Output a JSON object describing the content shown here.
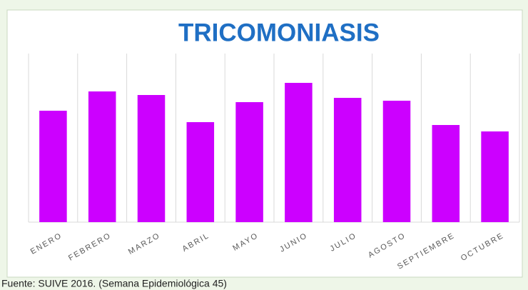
{
  "chart_data": {
    "type": "bar",
    "title": "TRICOMONIASIS",
    "categories": [
      "ENERO",
      "FEBRERO",
      "MARZO",
      "ABRIL",
      "MAYO",
      "JUNIO",
      "JULIO",
      "AGOSTO",
      "SEPTIEMBRE",
      "OCTUBRE"
    ],
    "values": [
      156,
      183,
      178,
      140,
      168,
      195,
      174,
      170,
      136,
      127
    ],
    "color": "#cc00ff",
    "ylim": [
      0,
      236
    ],
    "grid": true,
    "source": "Fuente: SUIVE 2016. (Semana Epidemiológica 45)"
  }
}
